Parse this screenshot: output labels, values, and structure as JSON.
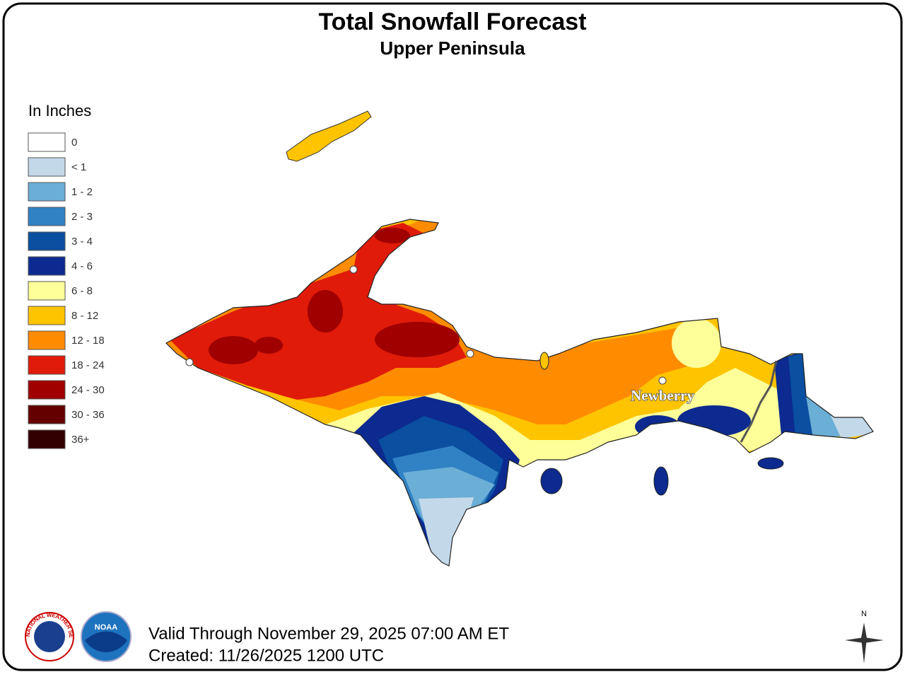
{
  "header": {
    "title": "Total Snowfall Forecast",
    "subtitle": "Upper Peninsula"
  },
  "legend": {
    "title": "In Inches",
    "items": [
      {
        "label": "0",
        "color": "#ffffff"
      },
      {
        "label": "< 1",
        "color": "#c3d9ea"
      },
      {
        "label": "1 - 2",
        "color": "#6baed6"
      },
      {
        "label": "2 - 3",
        "color": "#3182c4"
      },
      {
        "label": "3 - 4",
        "color": "#0a4fa0"
      },
      {
        "label": "4 - 6",
        "color": "#0c2a8f"
      },
      {
        "label": "6 - 8",
        "color": "#ffff99"
      },
      {
        "label": "8 - 12",
        "color": "#ffc400"
      },
      {
        "label": "12 - 18",
        "color": "#ff8c00"
      },
      {
        "label": "18 - 24",
        "color": "#e01b0a"
      },
      {
        "label": "24 - 30",
        "color": "#a00000"
      },
      {
        "label": "30 - 36",
        "color": "#640000"
      },
      {
        "label": "36+",
        "color": "#330000"
      }
    ]
  },
  "map": {
    "city": "Newberry"
  },
  "footer": {
    "valid": "Valid Through November 29, 2025 07:00 AM ET",
    "created": "Created: 11/26/2025 1200 UTC"
  },
  "logos": {
    "nws": "NATIONAL WEATHER SERVICE",
    "noaa": "NOAA"
  },
  "compass": "N"
}
